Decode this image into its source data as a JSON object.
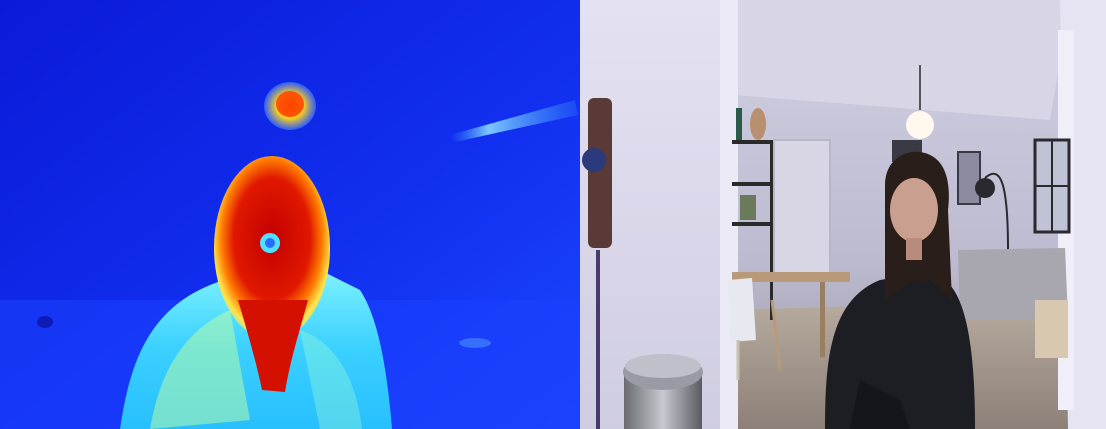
{
  "panels": [
    {
      "id": "thermal",
      "content": "thermal-camera-view",
      "palette": [
        "#0b1de6",
        "#1a4cff",
        "#26b8ff",
        "#8fffc9",
        "#ffee33",
        "#ff6a00",
        "#d60000",
        "#9a0000"
      ]
    },
    {
      "id": "rgb",
      "content": "rgb-camera-view",
      "palette": [
        "#d9d6ea",
        "#b8b6cc",
        "#8f8ea6",
        "#1c1c24",
        "#5a4236",
        "#c9b8a6"
      ]
    }
  ]
}
